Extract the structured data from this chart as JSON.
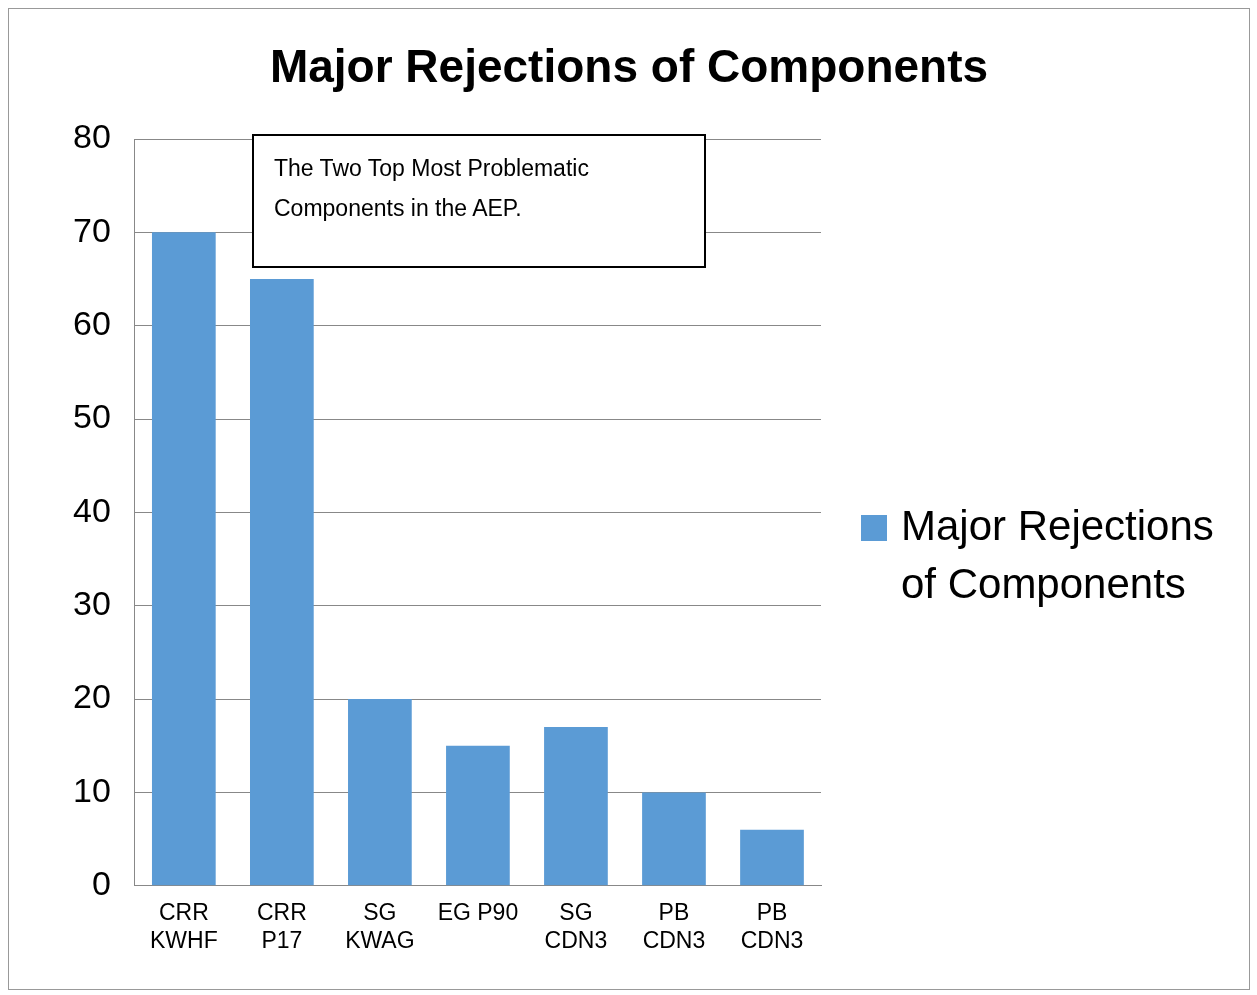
{
  "chart_data": {
    "type": "bar",
    "title": "Major Rejections of Components",
    "categories": [
      "CRR KWHF",
      "CRR P17",
      "SG KWAG",
      "EG P90",
      "SG CDN3",
      "PB CDN3",
      "PB CDN3"
    ],
    "series": [
      {
        "name": "Major Rejections of Components",
        "color": "#5b9bd5",
        "values": [
          70,
          65,
          20,
          15,
          17,
          10,
          6
        ]
      }
    ],
    "ylim": [
      0,
      80
    ],
    "yticks": [
      0,
      10,
      20,
      30,
      40,
      50,
      60,
      70,
      80
    ],
    "grid": "y",
    "legend": "right",
    "annotations": [
      "The Two Top Most Problematic Components in the AEP."
    ]
  }
}
